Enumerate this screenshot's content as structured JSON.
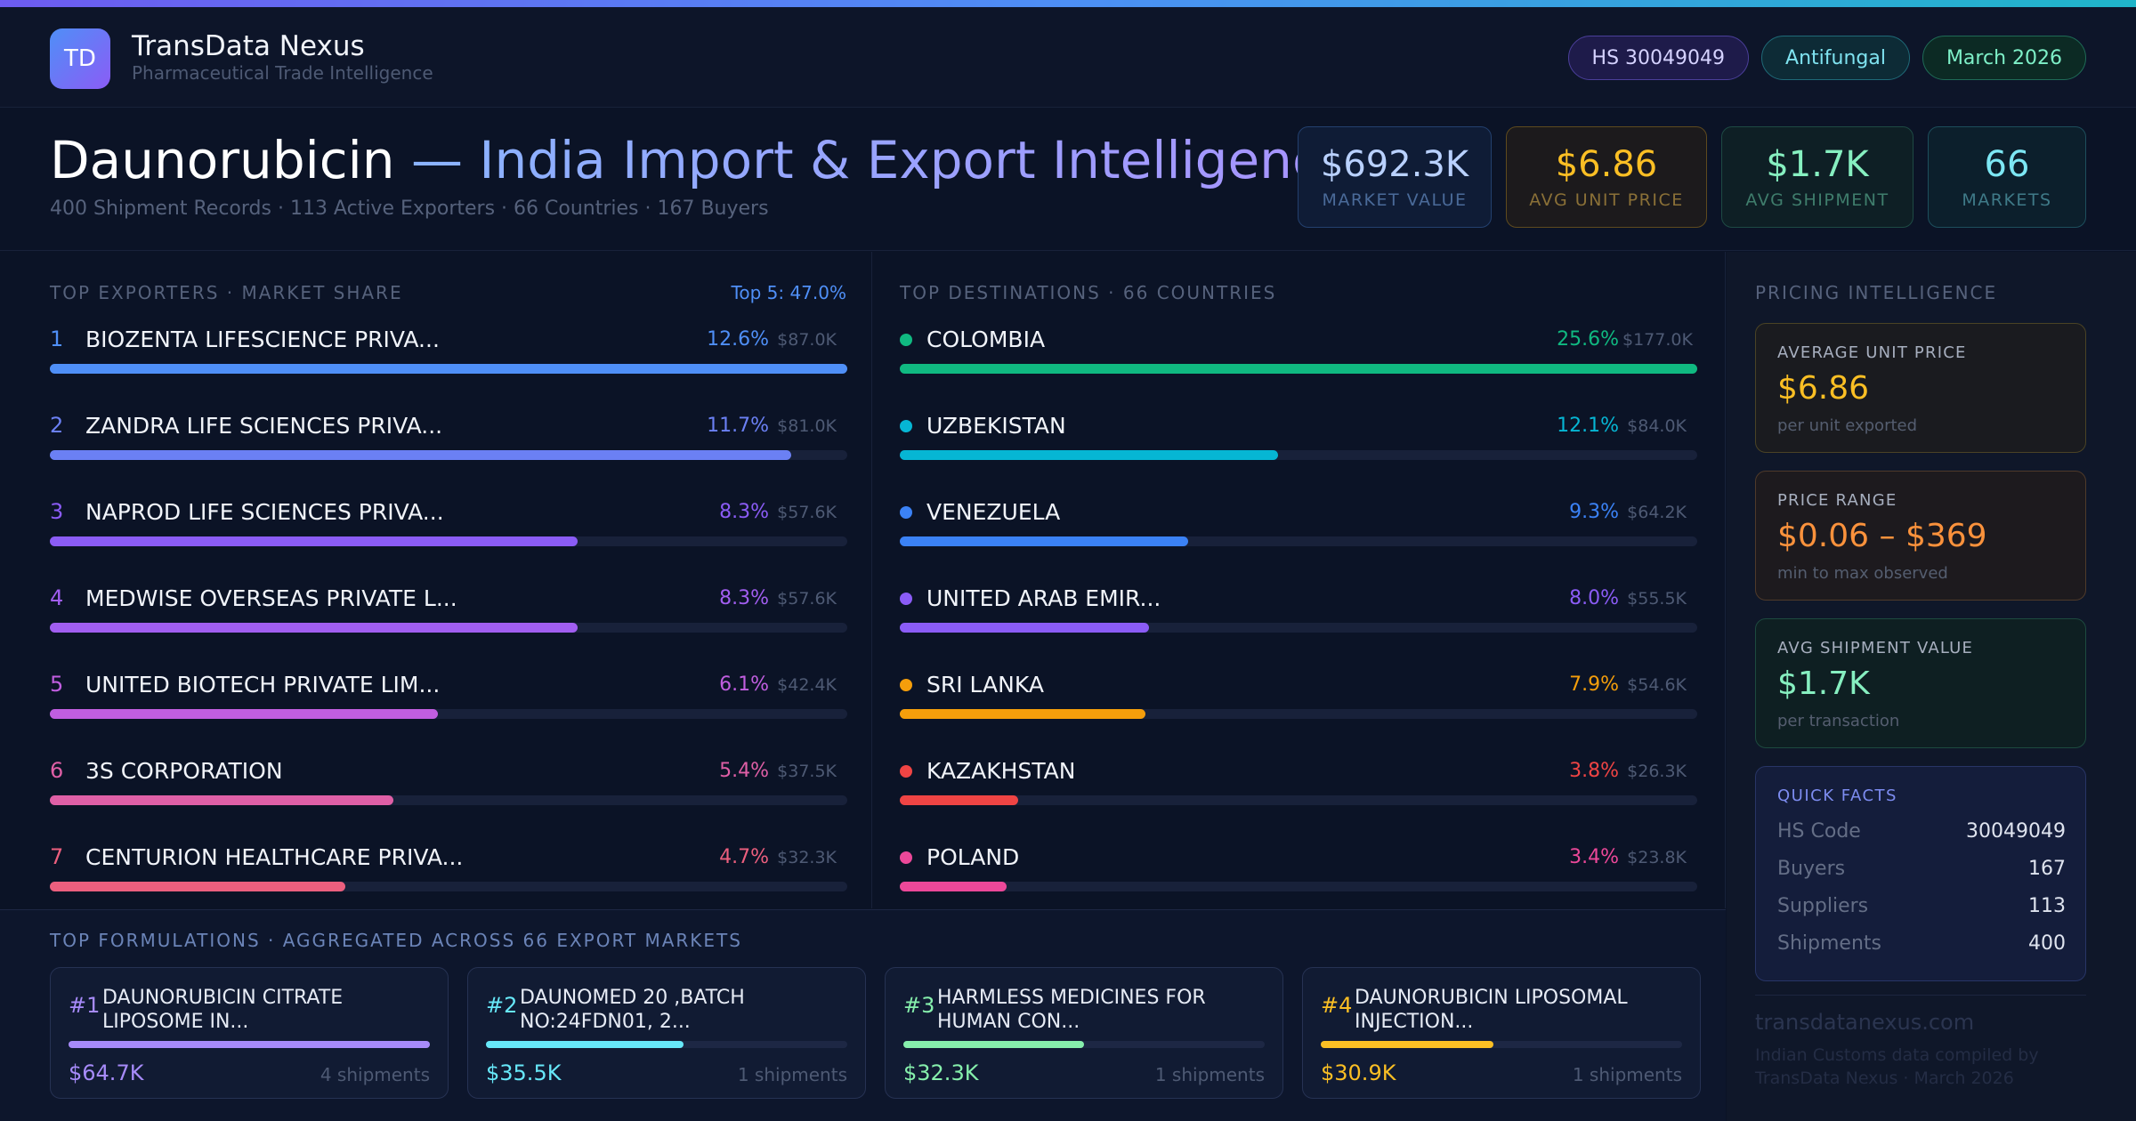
{
  "colors": {
    "accent_blue": "#4f8ff7",
    "accent_purple": "#8b5cf6",
    "gold": "#fbbf24",
    "green": "#86efc0",
    "cyan": "#7de7f4"
  },
  "brand": {
    "logo_text": "TD",
    "name": "TransData Nexus",
    "tagline": "Pharmaceutical Trade Intelligence"
  },
  "pills": {
    "hs": "HS 30049049",
    "category": "Antifungal",
    "date": "March 2026"
  },
  "title": {
    "drug": "Daunorubicin",
    "rest": " — India Import & Export Intelligence",
    "subtitle": "400 Shipment Records · 113 Active Exporters · 66 Countries · 167 Buyers"
  },
  "kpis": [
    {
      "value": "$692.3K",
      "label": "MARKET VALUE"
    },
    {
      "value": "$6.86",
      "label": "AVG UNIT PRICE"
    },
    {
      "value": "$1.7K",
      "label": "AVG SHIPMENT"
    },
    {
      "value": "66",
      "label": "MARKETS"
    }
  ],
  "exporters": {
    "label": "TOP EXPORTERS · MARKET SHARE",
    "top5": "Top 5: 47.0%",
    "items": [
      {
        "rank": "1",
        "name": "BIOZENTA LIFESCIENCE PRIVA...",
        "pct": "12.6%",
        "amount": "$87.0K",
        "fill": 1.0,
        "color": "#4f8ff7"
      },
      {
        "rank": "2",
        "name": "ZANDRA LIFE SCIENCES PRIVA...",
        "pct": "11.7%",
        "amount": "$81.0K",
        "fill": 0.93,
        "color": "#6b80f4"
      },
      {
        "rank": "3",
        "name": "NAPROD LIFE SCIENCES PRIVA...",
        "pct": "8.3%",
        "amount": "$57.6K",
        "fill": 0.662,
        "color": "#8b5cf6"
      },
      {
        "rank": "4",
        "name": "MEDWISE OVERSEAS PRIVATE L...",
        "pct": "8.3%",
        "amount": "$57.6K",
        "fill": 0.662,
        "color": "#a15ef0"
      },
      {
        "rank": "5",
        "name": "UNITED BIOTECH PRIVATE LIM...",
        "pct": "6.1%",
        "amount": "$42.4K",
        "fill": 0.487,
        "color": "#c15ee0"
      },
      {
        "rank": "6",
        "name": "3S CORPORATION",
        "pct": "5.4%",
        "amount": "$37.5K",
        "fill": 0.431,
        "color": "#df5fa6"
      },
      {
        "rank": "7",
        "name": "CENTURION HEALTHCARE PRIVA...",
        "pct": "4.7%",
        "amount": "$32.3K",
        "fill": 0.371,
        "color": "#ec5f7e"
      }
    ]
  },
  "destinations": {
    "label": "TOP DESTINATIONS · 66 COUNTRIES",
    "items": [
      {
        "name": "COLOMBIA",
        "pct": "25.6%",
        "amount": "$177.0K",
        "fill": 1.0,
        "color": "#10b981"
      },
      {
        "name": "UZBEKISTAN",
        "pct": "12.1%",
        "amount": "$84.0K",
        "fill": 0.474,
        "color": "#06b6d4"
      },
      {
        "name": "VENEZUELA",
        "pct": "9.3%",
        "amount": "$64.2K",
        "fill": 0.362,
        "color": "#3b82f6"
      },
      {
        "name": "UNITED ARAB EMIR...",
        "pct": "8.0%",
        "amount": "$55.5K",
        "fill": 0.313,
        "color": "#8b5cf6"
      },
      {
        "name": "SRI LANKA",
        "pct": "7.9%",
        "amount": "$54.6K",
        "fill": 0.308,
        "color": "#f59e0b"
      },
      {
        "name": "KAZAKHSTAN",
        "pct": "3.8%",
        "amount": "$26.3K",
        "fill": 0.148,
        "color": "#ef4444"
      },
      {
        "name": "POLAND",
        "pct": "3.4%",
        "amount": "$23.8K",
        "fill": 0.134,
        "color": "#ec4899"
      }
    ]
  },
  "formulations": {
    "label": "TOP FORMULATIONS · AGGREGATED ACROSS 66 EXPORT MARKETS",
    "items": [
      {
        "num": "#1",
        "name": "DAUNORUBICIN CITRATE LIPOSOME IN...",
        "value": "$64.7K",
        "shipments": "4 shipments",
        "fill": 1.0,
        "color": "#a78bfa"
      },
      {
        "num": "#2",
        "name": "DAUNOMED 20 ,BATCH NO:24FDN01, 2...",
        "value": "$35.5K",
        "shipments": "1 shipments",
        "fill": 0.548,
        "color": "#67e8f9"
      },
      {
        "num": "#3",
        "name": "HARMLESS MEDICINES FOR HUMAN CON...",
        "value": "$32.3K",
        "shipments": "1 shipments",
        "fill": 0.499,
        "color": "#86efac"
      },
      {
        "num": "#4",
        "name": "DAUNORUBICIN LIPOSOMAL INJECTION...",
        "value": "$30.9K",
        "shipments": "1 shipments",
        "fill": 0.477,
        "color": "#fbbf24"
      }
    ]
  },
  "pricing": {
    "label": "PRICING INTELLIGENCE",
    "avg_unit": {
      "label": "AVERAGE UNIT PRICE",
      "value": "$6.86",
      "sub": "per unit exported"
    },
    "range": {
      "label": "PRICE RANGE",
      "value": "$0.06 – $369",
      "sub": "min to max observed"
    },
    "avg_ship": {
      "label": "AVG SHIPMENT VALUE",
      "value": "$1.7K",
      "sub": "per transaction"
    },
    "quick_facts": {
      "title": "QUICK FACTS",
      "rows": [
        {
          "key": "HS Code",
          "value": "30049049"
        },
        {
          "key": "Buyers",
          "value": "167"
        },
        {
          "key": "Suppliers",
          "value": "113"
        },
        {
          "key": "Shipments",
          "value": "400"
        }
      ]
    },
    "site": "transdatanexus.com",
    "footnote": "Indian Customs data compiled by TransData Nexus · March 2026"
  }
}
